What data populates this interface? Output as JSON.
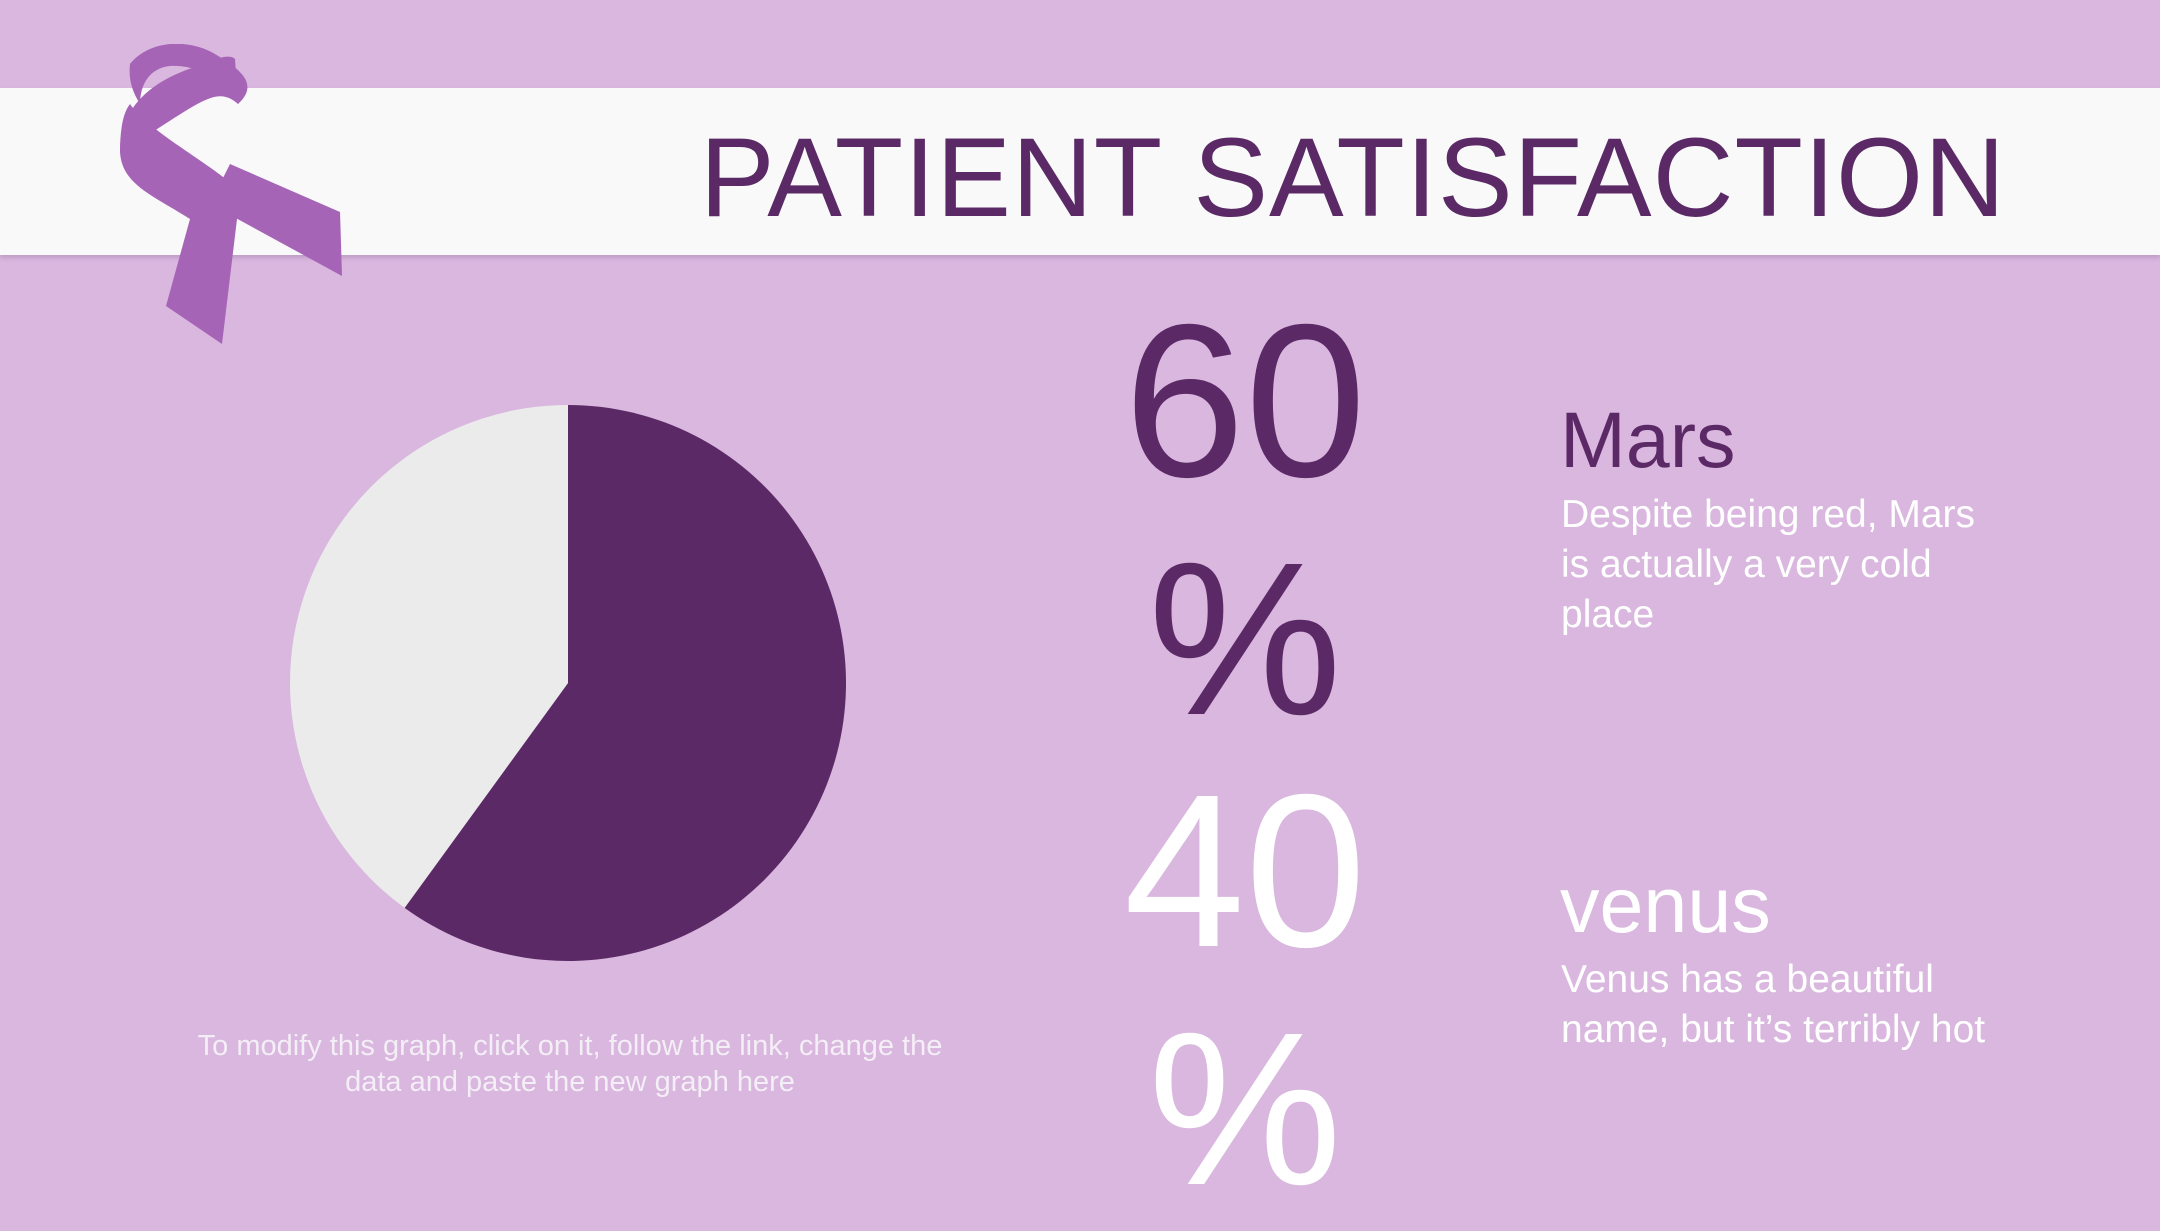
{
  "title": "PATIENT SATISFACTION",
  "colors": {
    "background": "#d9b7df",
    "banner": "#f9f9fa",
    "accent_dark": "#5b2a66",
    "ribbon": "#a664b6",
    "pie_light": "#ebebeb"
  },
  "ribbon_icon": "awareness-ribbon-icon",
  "chart_data": {
    "type": "pie",
    "slices": [
      {
        "value": 60,
        "color": "#5b2a66"
      },
      {
        "value": 40,
        "color": "#ebebeb"
      }
    ]
  },
  "caption": "To modify this graph, click on it, follow the link, change the data and paste the new graph here",
  "stats": [
    {
      "value": "60\n%",
      "heading": "Mars",
      "description": "Despite being red, Mars is actually a very cold place"
    },
    {
      "value": "40\n%",
      "heading": "venus",
      "description": "Venus has a beautiful name, but it’s terribly hot"
    }
  ]
}
